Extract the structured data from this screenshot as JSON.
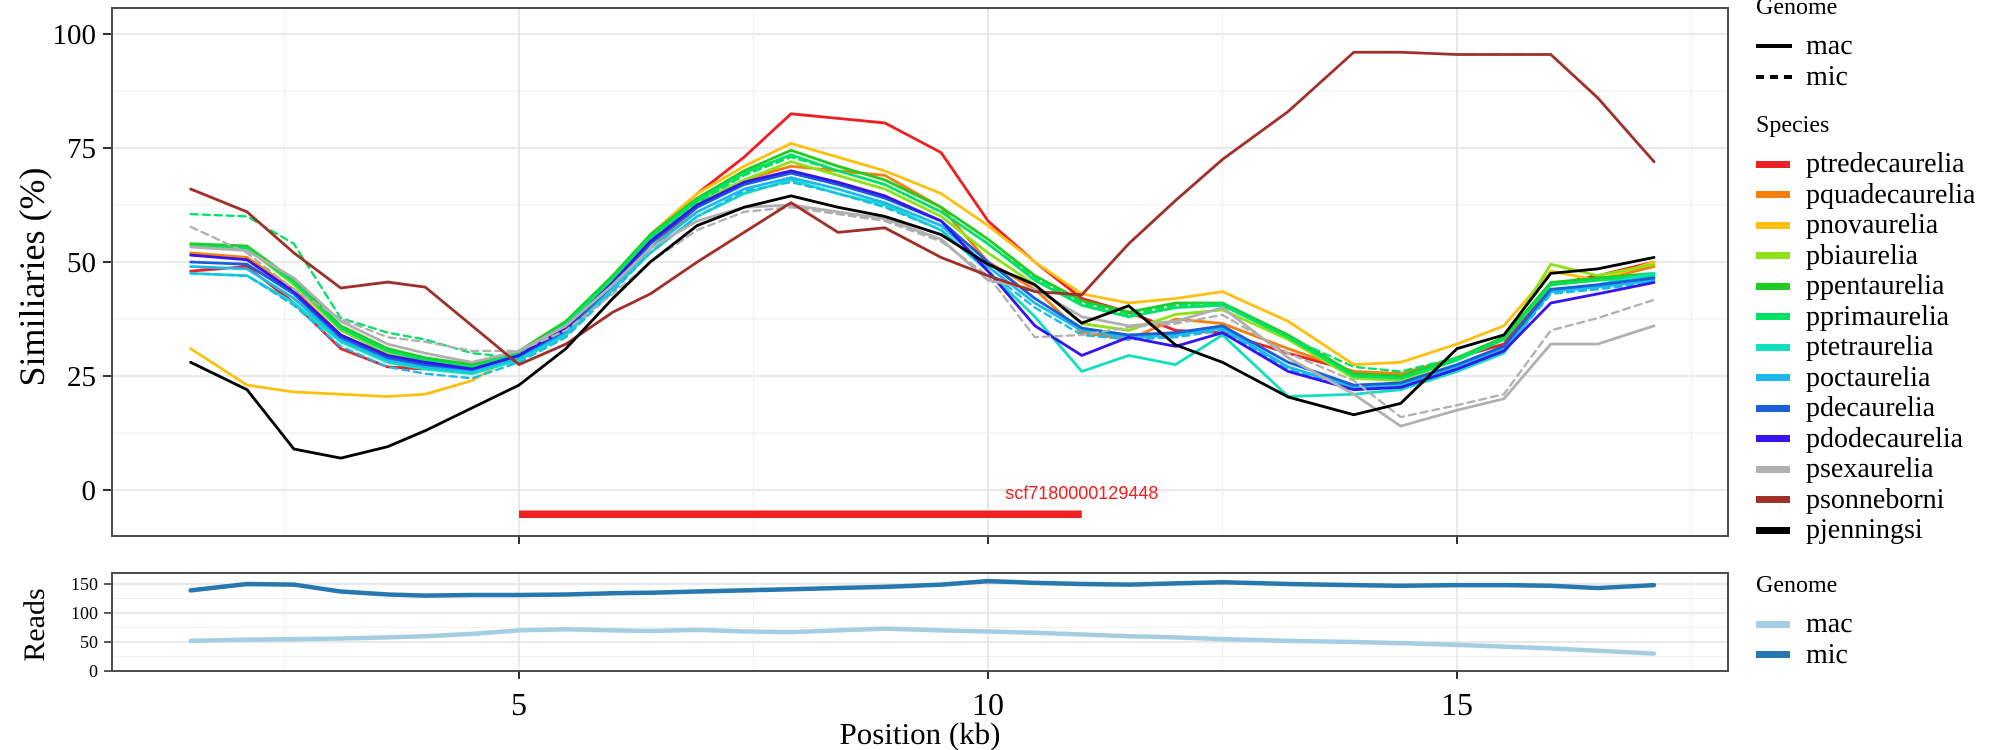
{
  "xlabel": "Position (kb)",
  "similarity_panel": {
    "ylabel": "Similiaries (%)"
  },
  "reads_panel": {
    "ylabel": "Reads"
  },
  "annotation": {
    "label": "scf7180000129448",
    "color": "#ee2222",
    "start_kb": 5.0,
    "end_kb": 11.0,
    "y_value": -5
  },
  "legend_genome": {
    "title": "Genome",
    "items": [
      {
        "label": "mac",
        "style": "solid"
      },
      {
        "label": "mic",
        "style": "dashed"
      }
    ]
  },
  "legend_species": {
    "title": "Species",
    "items": [
      {
        "label": "ptredecaurelia",
        "color": "#ed2024"
      },
      {
        "label": "pquadecaurelia",
        "color": "#f67f10"
      },
      {
        "label": "pnovaurelia",
        "color": "#fdc010"
      },
      {
        "label": "pbiaurelia",
        "color": "#8fe118"
      },
      {
        "label": "ppentaurelia",
        "color": "#22cc22"
      },
      {
        "label": "pprimaurelia",
        "color": "#00e266"
      },
      {
        "label": "ptetraurelia",
        "color": "#12dfc0"
      },
      {
        "label": "poctaurelia",
        "color": "#1cb8ee"
      },
      {
        "label": "pdecaurelia",
        "color": "#1a5fd6"
      },
      {
        "label": "pdodecaurelia",
        "color": "#3715ef"
      },
      {
        "label": "psexaurelia",
        "color": "#b0b0b0"
      },
      {
        "label": "psonneborni",
        "color": "#a0302a"
      },
      {
        "label": "pjenningsi",
        "color": "#000000"
      }
    ]
  },
  "legend_genome_reads": {
    "title": "Genome",
    "items": [
      {
        "label": "mac",
        "color": "#a6cee3"
      },
      {
        "label": "mic",
        "color": "#2878b0"
      }
    ]
  },
  "chart_data": [
    {
      "type": "line",
      "title": "similarity-by-position",
      "ylabel": "Similiaries (%)",
      "ylim": [
        0,
        100
      ],
      "yticks": [
        0,
        25,
        50,
        75,
        100
      ],
      "yticks_minor": [
        12.5,
        37.5,
        62.5,
        87.5
      ],
      "xticks": [
        5,
        10,
        15
      ],
      "xticks_minor": [
        2.5,
        7.5,
        12.5,
        17.5
      ],
      "xlim_kb": [
        0.66,
        17.9
      ],
      "grid": true,
      "x_kb": [
        1.5,
        2.1,
        2.6,
        3.1,
        3.6,
        4.0,
        4.5,
        5.0,
        5.5,
        6.0,
        6.4,
        6.9,
        7.4,
        7.9,
        8.4,
        8.9,
        9.5,
        10.0,
        10.5,
        11.0,
        11.5,
        12.0,
        12.5,
        13.2,
        13.9,
        14.4,
        15.0,
        15.5,
        16.0,
        16.5,
        17.1
      ],
      "series": [
        {
          "name": "ptredecaurelia",
          "color": "#ed2024",
          "mac": [
            48,
            49,
            41,
            31,
            27,
            26.5,
            26,
            29,
            35,
            46,
            56,
            65,
            73,
            82.5,
            81.5,
            80.5,
            74,
            59,
            50,
            42,
            39,
            35,
            34.5,
            30,
            26,
            25,
            29,
            32,
            45,
            47,
            50
          ],
          "mic_same_as_mac": true
        },
        {
          "name": "pquadecaurelia",
          "color": "#f67f10",
          "mac": [
            52,
            51,
            44,
            34,
            29,
            27.5,
            26.5,
            29.5,
            34,
            44,
            53,
            62,
            68,
            71,
            70,
            69,
            62,
            50,
            44,
            34.5,
            33,
            37.5,
            36.5,
            31,
            26,
            25.5,
            29,
            33,
            45,
            46,
            49
          ],
          "mic_same_as_mac": true
        },
        {
          "name": "pnovaurelia",
          "color": "#fdc010",
          "mac": [
            31,
            23,
            21.5,
            21,
            20.5,
            21,
            24,
            30,
            36,
            47,
            56,
            65,
            71,
            76,
            73,
            70,
            65,
            58,
            50,
            43,
            41,
            42,
            43.5,
            37,
            27.5,
            28,
            32,
            36,
            48,
            46,
            50
          ],
          "mic_same_as_mac": true
        },
        {
          "name": "pbiaurelia",
          "color": "#8fe118",
          "mac": [
            54,
            53,
            45,
            35,
            30,
            28,
            27,
            30,
            36,
            46,
            55,
            63,
            68,
            72,
            69,
            66,
            60,
            52,
            45,
            36.5,
            35,
            38.5,
            39.5,
            33,
            24.5,
            24,
            28.5,
            33,
            49.5,
            47,
            49.5
          ],
          "mic_same_as_mac": true
        },
        {
          "name": "ppentaurelia",
          "color": "#22cc22",
          "mac": [
            54,
            53.5,
            46,
            36,
            31,
            29,
            27.5,
            30.5,
            37,
            47,
            56,
            64,
            70,
            74.5,
            71,
            68,
            62,
            55,
            47,
            41.5,
            39,
            41,
            41,
            34,
            25.5,
            25,
            29,
            33.5,
            45.5,
            46.5,
            47.5
          ],
          "mic_same_as_mac": true
        },
        {
          "name": "pprimaurelia",
          "color": "#00e266",
          "mac": [
            53.5,
            53,
            45.5,
            35.5,
            30.5,
            28.5,
            27,
            30,
            36.5,
            46.5,
            55.5,
            63.5,
            69.5,
            73.5,
            70,
            67,
            61,
            54,
            46,
            40.5,
            38,
            40,
            40.5,
            33.5,
            25,
            24.5,
            28.5,
            33,
            45,
            46,
            47
          ],
          "mic": [
            60.5,
            60,
            54,
            37.7,
            34.5,
            33,
            30,
            29,
            36,
            46,
            55,
            63,
            69,
            73,
            70,
            67,
            61,
            54,
            46.5,
            41,
            38.5,
            40.5,
            41,
            33.5,
            27,
            26,
            29,
            33,
            45,
            46,
            47.5
          ]
        },
        {
          "name": "ptetraurelia",
          "color": "#12dfc0",
          "mac": [
            47.5,
            47,
            41,
            32.5,
            28,
            26.5,
            25.5,
            28.5,
            34,
            44,
            52,
            60,
            65,
            68,
            65,
            62.5,
            57,
            48,
            38,
            26,
            29.5,
            27.5,
            34,
            20.5,
            21,
            22,
            26,
            30,
            44,
            45,
            47.5
          ],
          "mic_same_as_mac": true
        },
        {
          "name": "poctaurelia",
          "color": "#1cb8ee",
          "mac": [
            49,
            48.5,
            42,
            33,
            28.5,
            27,
            26,
            29,
            34.5,
            44.5,
            53,
            61,
            66,
            68.5,
            66,
            63,
            58,
            49,
            41,
            35,
            33.5,
            34,
            35.5,
            27,
            22.5,
            23,
            27,
            31,
            43.5,
            44.5,
            46
          ],
          "mic": [
            47.5,
            47,
            40.5,
            31.5,
            27,
            25.5,
            24.5,
            28,
            33.5,
            43.5,
            52,
            60,
            65.5,
            67.5,
            65,
            62,
            57,
            48,
            40,
            34,
            33,
            33.5,
            35,
            26.5,
            22,
            22.5,
            26.5,
            30.5,
            43,
            44,
            45.5
          ]
        },
        {
          "name": "pdecaurelia",
          "color": "#1a5fd6",
          "mac": [
            50,
            49.5,
            43,
            33.5,
            29,
            27.5,
            26.5,
            29.5,
            35,
            45,
            54,
            62,
            67,
            69.5,
            67,
            64,
            59,
            50,
            42,
            35.5,
            34,
            34.5,
            36,
            28,
            23,
            23.5,
            27.5,
            31.5,
            44,
            45,
            46.5
          ],
          "mic_same_as_mac": true
        },
        {
          "name": "pdodecaurelia",
          "color": "#3715ef",
          "mac": [
            51.5,
            50.5,
            43.5,
            34,
            29.5,
            28,
            26.5,
            29.5,
            35.5,
            45.5,
            54.5,
            62.5,
            67.5,
            70,
            67.5,
            64.5,
            59,
            48,
            36,
            29.5,
            33.5,
            31.5,
            34.5,
            26,
            22,
            22.5,
            26.5,
            30.5,
            41,
            43,
            45.5
          ],
          "mic_same_as_mac": true
        },
        {
          "name": "psexaurelia",
          "color": "#b0b0b0",
          "mac": [
            53.3,
            52.5,
            46.5,
            37,
            32,
            30,
            28,
            30.5,
            36,
            45,
            53,
            59,
            62,
            62.5,
            61,
            59.5,
            55,
            46,
            44,
            38,
            36,
            37,
            40,
            29,
            21,
            14,
            17.5,
            20,
            32,
            32,
            36
          ],
          "mic": [
            57.7,
            52,
            44,
            37.5,
            33.5,
            32.5,
            30.5,
            30.5,
            35,
            43,
            50,
            57,
            61,
            62,
            60.5,
            59,
            54.5,
            47,
            33.5,
            34,
            35.7,
            36.5,
            38.4,
            30,
            24,
            16,
            18.6,
            21,
            35,
            37.7,
            41.7
          ]
        },
        {
          "name": "psonneborni",
          "color": "#a0302a",
          "mac": [
            66,
            61,
            52,
            44.3,
            45.6,
            44.5,
            36,
            27.5,
            32,
            39,
            43,
            50,
            56.5,
            63,
            56.5,
            57.5,
            51,
            47,
            43.5,
            42.8,
            54,
            63.5,
            72.5,
            83,
            96,
            96,
            95.5,
            95.5,
            95.5,
            86,
            72
          ],
          "mic_same_as_mac": true
        },
        {
          "name": "pjenningsi",
          "color": "#000000",
          "mac": [
            28,
            22,
            9,
            7,
            9.5,
            13,
            18,
            23,
            31,
            42,
            50,
            58,
            62,
            64.5,
            62,
            60,
            56,
            49.5,
            45,
            36.6,
            40.4,
            31.8,
            28,
            20.4,
            16.5,
            19,
            31,
            34,
            47.5,
            48.5,
            51
          ],
          "mic_same_as_mac": true
        }
      ]
    },
    {
      "type": "line",
      "title": "reads-by-position",
      "ylabel": "Reads",
      "ylim": [
        0,
        169
      ],
      "yticks": [
        0,
        50,
        100,
        150
      ],
      "yticks_minor": [
        25,
        75,
        125
      ],
      "grid": true,
      "x_kb": [
        1.5,
        2.1,
        2.6,
        3.1,
        3.6,
        4.0,
        4.5,
        5.0,
        5.5,
        6.0,
        6.4,
        6.9,
        7.4,
        7.9,
        8.4,
        8.9,
        9.5,
        10.0,
        10.5,
        11.0,
        11.5,
        12.0,
        12.5,
        13.2,
        13.9,
        14.4,
        15.0,
        15.5,
        16.0,
        16.5,
        17.1
      ],
      "series": [
        {
          "name": "mac",
          "color": "#a6cee3",
          "values": [
            52,
            54,
            55,
            56,
            58,
            60,
            64,
            70,
            72,
            70,
            69,
            71,
            68,
            67,
            70,
            73,
            70,
            68,
            66,
            63,
            60,
            58,
            55,
            52,
            50,
            48,
            45,
            42,
            39,
            35,
            30
          ]
        },
        {
          "name": "mic",
          "color": "#2878b0",
          "values": [
            139,
            150,
            149,
            137,
            132,
            130,
            131,
            131,
            132,
            134,
            135,
            137,
            139,
            141,
            143,
            145,
            149,
            155,
            152,
            150,
            149,
            151,
            153,
            150,
            148,
            147,
            148,
            148,
            147,
            143,
            148
          ]
        }
      ]
    }
  ]
}
